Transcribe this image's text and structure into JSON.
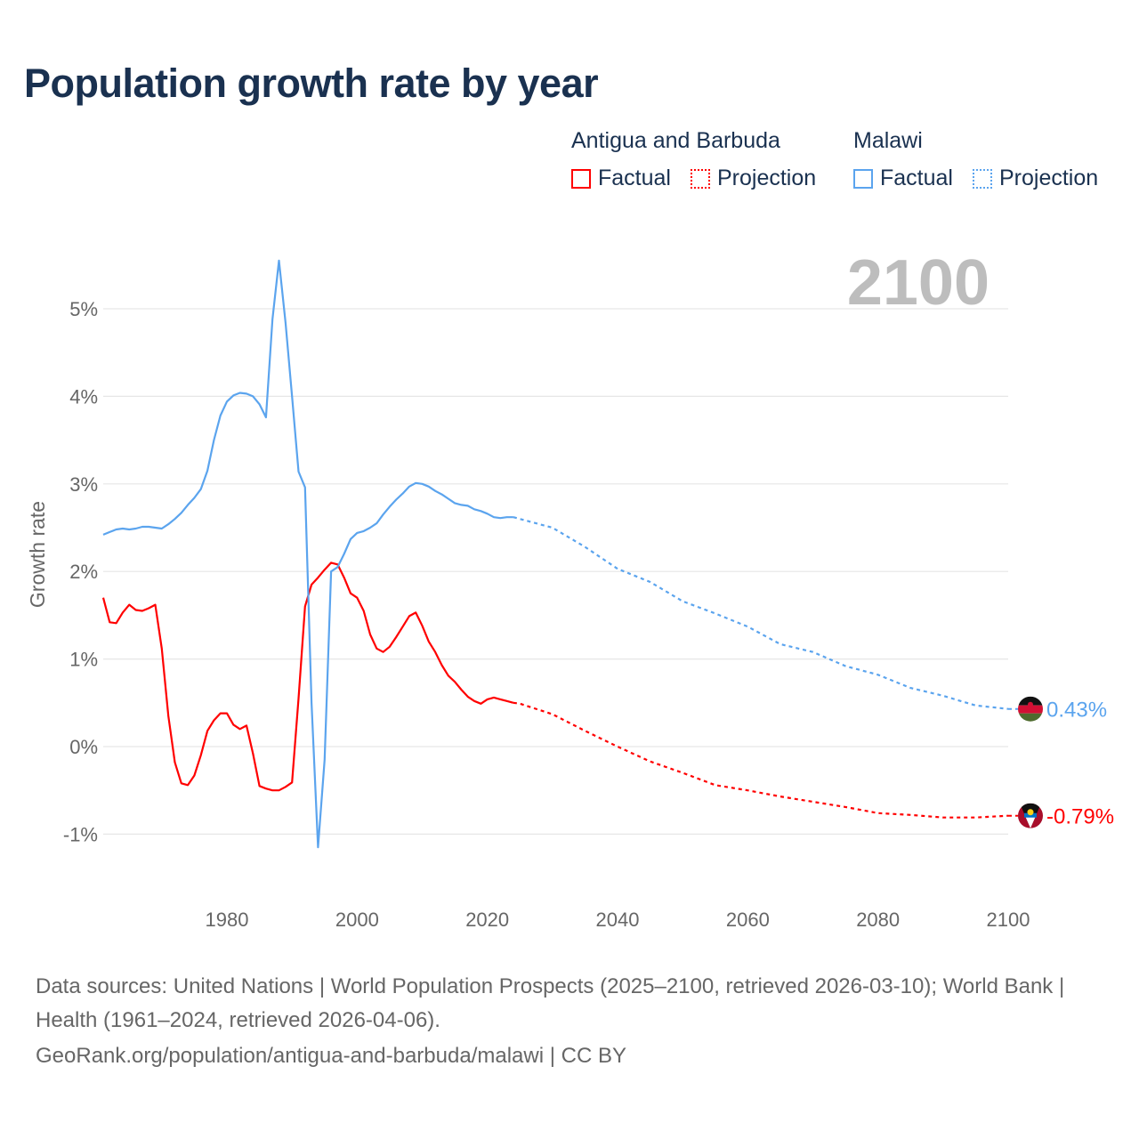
{
  "title": "Population growth rate by year",
  "legend": {
    "groups": [
      {
        "name": "Antigua and Barbuda",
        "color": "#ff0000",
        "factual_label": "Factual",
        "projection_label": "Projection"
      },
      {
        "name": "Malawi",
        "color": "#5ba4ee",
        "factual_label": "Factual",
        "projection_label": "Projection"
      }
    ]
  },
  "chart_data": {
    "type": "line",
    "title": "Population growth rate by year",
    "xlabel": "",
    "ylabel": "Growth rate",
    "xlim": [
      1961,
      2100
    ],
    "ylim": [
      -1.7,
      5.7
    ],
    "x_ticks": [
      {
        "v": 1980,
        "label": "1980"
      },
      {
        "v": 2000,
        "label": "2000"
      },
      {
        "v": 2020,
        "label": "2020"
      },
      {
        "v": 2040,
        "label": "2040"
      },
      {
        "v": 2060,
        "label": "2060"
      },
      {
        "v": 2080,
        "label": "2080"
      },
      {
        "v": 2100,
        "label": "2100"
      }
    ],
    "y_ticks": [
      {
        "v": 5,
        "label": "5%"
      },
      {
        "v": 4,
        "label": "4%"
      },
      {
        "v": 3,
        "label": "3%"
      },
      {
        "v": 2,
        "label": "2%"
      },
      {
        "v": 1,
        "label": "1%"
      },
      {
        "v": 0,
        "label": "0%"
      },
      {
        "v": -1,
        "label": "-1%"
      }
    ],
    "year_watermark": "2100",
    "grid": true,
    "series": [
      {
        "name": "Antigua and Barbuda",
        "color": "#ff0000",
        "end_label": "-0.79%",
        "factual": {
          "start_year": 1961,
          "values": [
            1.7,
            1.42,
            1.41,
            1.53,
            1.62,
            1.56,
            1.55,
            1.58,
            1.62,
            1.12,
            0.35,
            -0.18,
            -0.42,
            -0.44,
            -0.33,
            -0.1,
            0.18,
            0.3,
            0.38,
            0.38,
            0.25,
            0.2,
            0.24,
            -0.08,
            -0.45,
            -0.48,
            -0.5,
            -0.5,
            -0.46,
            -0.41,
            0.55,
            1.6,
            1.85,
            1.93,
            2.02,
            2.1,
            2.08,
            1.93,
            1.75,
            1.7,
            1.55,
            1.28,
            1.12,
            1.08,
            1.14,
            1.25,
            1.37,
            1.49,
            1.53,
            1.38,
            1.2,
            1.08,
            0.93,
            0.81,
            0.74,
            0.65,
            0.57,
            0.52,
            0.49,
            0.54,
            0.56,
            0.54,
            0.52,
            0.5
          ]
        },
        "projection": {
          "years": [
            2024,
            2025,
            2030,
            2035,
            2040,
            2045,
            2050,
            2055,
            2060,
            2065,
            2070,
            2075,
            2080,
            2085,
            2090,
            2095,
            2100
          ],
          "values": [
            0.5,
            0.49,
            0.37,
            0.18,
            0.0,
            -0.17,
            -0.3,
            -0.44,
            -0.5,
            -0.57,
            -0.63,
            -0.69,
            -0.76,
            -0.78,
            -0.81,
            -0.81,
            -0.79
          ]
        }
      },
      {
        "name": "Malawi",
        "color": "#5ba4ee",
        "end_label": "0.43%",
        "factual": {
          "start_year": 1961,
          "values": [
            2.42,
            2.45,
            2.48,
            2.49,
            2.48,
            2.49,
            2.51,
            2.51,
            2.5,
            2.49,
            2.54,
            2.6,
            2.67,
            2.76,
            2.84,
            2.94,
            3.15,
            3.5,
            3.78,
            3.94,
            4.01,
            4.04,
            4.03,
            4.0,
            3.91,
            3.76,
            4.88,
            5.55,
            4.84,
            4.0,
            3.14,
            2.96,
            0.5,
            -1.15,
            -0.15,
            2.0,
            2.05,
            2.2,
            2.37,
            2.44,
            2.46,
            2.5,
            2.55,
            2.65,
            2.74,
            2.82,
            2.89,
            2.97,
            3.01,
            3.0,
            2.97,
            2.92,
            2.88,
            2.83,
            2.78,
            2.76,
            2.75,
            2.71,
            2.69,
            2.66,
            2.62,
            2.61,
            2.62,
            2.62
          ]
        },
        "projection": {
          "years": [
            2024,
            2025,
            2030,
            2035,
            2040,
            2045,
            2050,
            2055,
            2060,
            2065,
            2070,
            2075,
            2080,
            2085,
            2090,
            2095,
            2100
          ],
          "values": [
            2.62,
            2.6,
            2.5,
            2.28,
            2.03,
            1.88,
            1.66,
            1.52,
            1.37,
            1.17,
            1.08,
            0.92,
            0.82,
            0.67,
            0.58,
            0.47,
            0.43
          ]
        }
      }
    ]
  },
  "footer": {
    "sources": "Data sources: United Nations | World Population Prospects (2025–2100, retrieved 2026-03-10); World Bank | Health (1961–2024, retrieved 2026-04-06).",
    "credit": "GeoRank.org/population/antigua-and-barbuda/malawi | CC BY"
  }
}
